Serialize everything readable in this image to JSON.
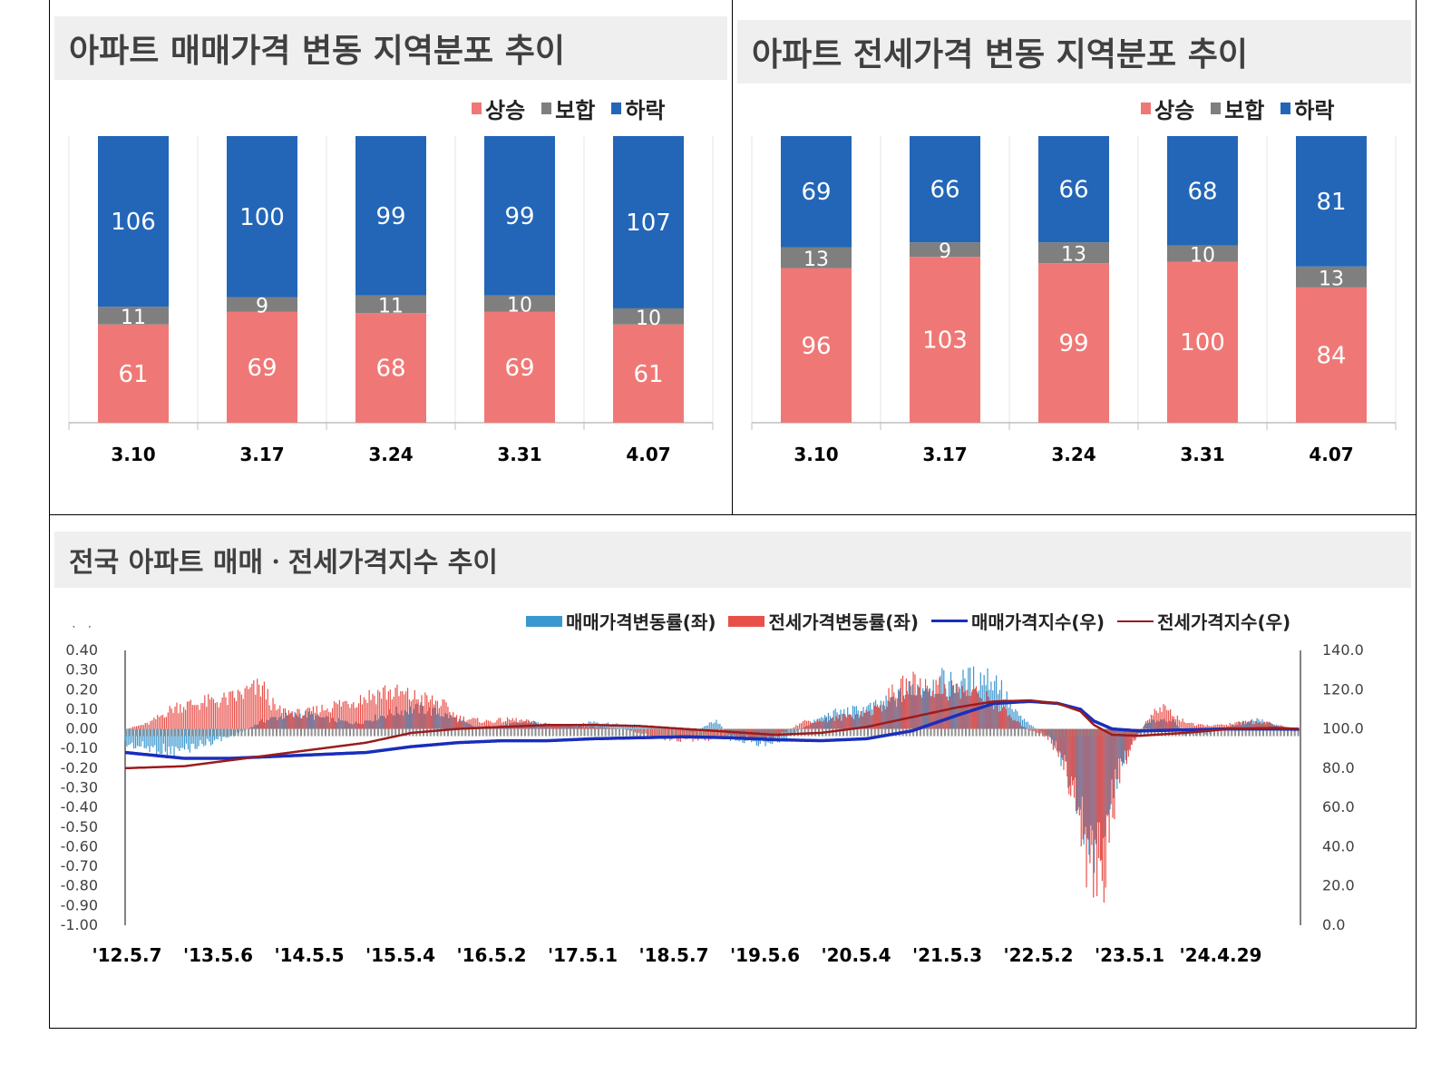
{
  "colors": {
    "rise": "#ef7876",
    "flat": "#7f7f7f",
    "fall": "#2366b8",
    "sale_rate": "#3b97cf",
    "jeonse_rate": "#e8504a",
    "sale_index": "#1a2ebb",
    "jeonse_index": "#9b1c1c"
  },
  "left_panel": {
    "title": "아파트 매매가격 변동 지역분포 추이"
  },
  "right_panel": {
    "title": "아파트 전세가격 변동 지역분포 추이"
  },
  "bottom_panel": {
    "title": "전국 아파트 매매ㆍ전세가격지수 추이"
  },
  "stack_legend": {
    "rise": "상승",
    "flat": "보합",
    "fall": "하락"
  },
  "line_legend": {
    "sale_rate": "매매가격변동률(좌)",
    "jeonse_rate": "전세가격변동률(좌)",
    "sale_index": "매매가격지수(우)",
    "jeonse_index": "전세가격지수(우)"
  },
  "chart_data": [
    {
      "type": "bar",
      "stacked": true,
      "title": "아파트 매매가격 변동 지역분포 추이",
      "categories": [
        "3.10",
        "3.17",
        "3.24",
        "3.31",
        "4.07"
      ],
      "series": [
        {
          "name": "상승",
          "values": [
            61,
            69,
            68,
            69,
            61
          ]
        },
        {
          "name": "보합",
          "values": [
            11,
            9,
            11,
            10,
            10
          ]
        },
        {
          "name": "하락",
          "values": [
            106,
            100,
            99,
            99,
            107
          ]
        }
      ],
      "legend": "top-right"
    },
    {
      "type": "bar",
      "stacked": true,
      "title": "아파트 전세가격 변동 지역분포 추이",
      "categories": [
        "3.10",
        "3.17",
        "3.24",
        "3.31",
        "4.07"
      ],
      "series": [
        {
          "name": "상승",
          "values": [
            96,
            103,
            99,
            100,
            84
          ]
        },
        {
          "name": "보합",
          "values": [
            13,
            9,
            13,
            10,
            13
          ]
        },
        {
          "name": "하락",
          "values": [
            69,
            66,
            66,
            68,
            81
          ]
        }
      ],
      "legend": "top-right"
    },
    {
      "type": "bar+line",
      "title": "전국 아파트 매매ㆍ전세가격지수 추이",
      "y_left_unit": "(%)",
      "ylim_left": [
        -1.0,
        0.4
      ],
      "y_left_ticks": [
        "0.40",
        "0.30",
        "0.20",
        "0.10",
        "0.00",
        "-0.10",
        "-0.20",
        "-0.30",
        "-0.40",
        "-0.50",
        "-0.60",
        "-0.70",
        "-0.80",
        "-0.90",
        "-1.00"
      ],
      "ylim_right": [
        0,
        140
      ],
      "y_right_ticks": [
        "140.0",
        "120.0",
        "100.0",
        "80.0",
        "60.0",
        "40.0",
        "20.0",
        "0.0"
      ],
      "x_tick_labels": [
        "'12.5.7",
        "'13.5.6",
        "'14.5.5",
        "'15.5.4",
        "'16.5.2",
        "'17.5.1",
        "'18.5.7",
        "'19.5.6",
        "'20.5.4",
        "'21.5.3",
        "'22.5.2",
        "'23.5.1",
        "'24.4.29"
      ],
      "x_range": [
        2012.35,
        2025.27
      ],
      "weekly_rate_series": [
        {
          "name": "매매가격변동률(좌)",
          "points": [
            [
              2012.35,
              -0.08
            ],
            [
              2012.6,
              -0.1
            ],
            [
              2012.9,
              -0.12
            ],
            [
              2013.2,
              -0.08
            ],
            [
              2013.5,
              -0.04
            ],
            [
              2013.7,
              0.0
            ],
            [
              2013.85,
              0.04
            ],
            [
              2014.0,
              0.06
            ],
            [
              2014.3,
              0.08
            ],
            [
              2014.6,
              0.05
            ],
            [
              2014.9,
              0.03
            ],
            [
              2015.3,
              0.09
            ],
            [
              2015.6,
              0.11
            ],
            [
              2015.9,
              0.07
            ],
            [
              2016.2,
              0.01
            ],
            [
              2016.5,
              0.02
            ],
            [
              2016.8,
              0.04
            ],
            [
              2017.0,
              0.02
            ],
            [
              2017.3,
              0.02
            ],
            [
              2017.5,
              0.04
            ],
            [
              2017.8,
              0.02
            ],
            [
              2018.0,
              0.02
            ],
            [
              2018.3,
              0.01
            ],
            [
              2018.6,
              -0.02
            ],
            [
              2018.85,
              0.05
            ],
            [
              2019.0,
              -0.05
            ],
            [
              2019.3,
              -0.08
            ],
            [
              2019.6,
              -0.05
            ],
            [
              2019.85,
              0.02
            ],
            [
              2020.1,
              0.08
            ],
            [
              2020.4,
              0.1
            ],
            [
              2020.6,
              0.12
            ],
            [
              2020.8,
              0.15
            ],
            [
              2021.0,
              0.22
            ],
            [
              2021.3,
              0.25
            ],
            [
              2021.5,
              0.24
            ],
            [
              2021.8,
              0.28
            ],
            [
              2021.95,
              0.25
            ],
            [
              2022.1,
              0.1
            ],
            [
              2022.3,
              0.02
            ],
            [
              2022.45,
              -0.02
            ],
            [
              2022.6,
              -0.1
            ],
            [
              2022.75,
              -0.3
            ],
            [
              2022.9,
              -0.5
            ],
            [
              2023.0,
              -0.7
            ],
            [
              2023.1,
              -0.5
            ],
            [
              2023.25,
              -0.25
            ],
            [
              2023.4,
              -0.08
            ],
            [
              2023.55,
              0.02
            ],
            [
              2023.7,
              0.05
            ],
            [
              2023.85,
              0.05
            ],
            [
              2024.0,
              -0.03
            ],
            [
              2024.2,
              -0.03
            ],
            [
              2024.4,
              0.0
            ],
            [
              2024.6,
              0.03
            ],
            [
              2024.8,
              0.05
            ],
            [
              2025.0,
              0.02
            ],
            [
              2025.27,
              -0.01
            ]
          ]
        },
        {
          "name": "전세가격변동률(좌)",
          "points": [
            [
              2012.35,
              0.0
            ],
            [
              2012.6,
              0.03
            ],
            [
              2012.9,
              0.12
            ],
            [
              2013.2,
              0.14
            ],
            [
              2013.5,
              0.16
            ],
            [
              2013.7,
              0.2
            ],
            [
              2013.85,
              0.22
            ],
            [
              2014.0,
              0.1
            ],
            [
              2014.3,
              0.08
            ],
            [
              2014.6,
              0.12
            ],
            [
              2014.9,
              0.16
            ],
            [
              2015.2,
              0.2
            ],
            [
              2015.5,
              0.17
            ],
            [
              2015.8,
              0.14
            ],
            [
              2016.0,
              0.06
            ],
            [
              2016.3,
              0.04
            ],
            [
              2016.6,
              0.05
            ],
            [
              2016.9,
              0.03
            ],
            [
              2017.2,
              0.02
            ],
            [
              2017.5,
              0.01
            ],
            [
              2017.8,
              0.0
            ],
            [
              2018.0,
              -0.02
            ],
            [
              2018.3,
              -0.05
            ],
            [
              2018.6,
              -0.06
            ],
            [
              2018.9,
              -0.04
            ],
            [
              2019.2,
              -0.05
            ],
            [
              2019.5,
              -0.04
            ],
            [
              2019.8,
              0.04
            ],
            [
              2020.1,
              0.05
            ],
            [
              2020.4,
              0.08
            ],
            [
              2020.6,
              0.1
            ],
            [
              2020.8,
              0.2
            ],
            [
              2021.0,
              0.24
            ],
            [
              2021.3,
              0.22
            ],
            [
              2021.6,
              0.2
            ],
            [
              2021.9,
              0.14
            ],
            [
              2022.1,
              0.05
            ],
            [
              2022.3,
              -0.01
            ],
            [
              2022.5,
              -0.05
            ],
            [
              2022.65,
              -0.2
            ],
            [
              2022.8,
              -0.4
            ],
            [
              2022.95,
              -0.8
            ],
            [
              2023.05,
              -0.85
            ],
            [
              2023.15,
              -0.6
            ],
            [
              2023.3,
              -0.2
            ],
            [
              2023.45,
              -0.05
            ],
            [
              2023.6,
              0.06
            ],
            [
              2023.75,
              0.12
            ],
            [
              2023.9,
              0.06
            ],
            [
              2024.1,
              0.02
            ],
            [
              2024.4,
              0.02
            ],
            [
              2024.7,
              0.04
            ],
            [
              2024.9,
              0.03
            ],
            [
              2025.1,
              0.01
            ],
            [
              2025.27,
              0.0
            ]
          ]
        }
      ],
      "index_series": [
        {
          "name": "매매가격지수(우)",
          "points": [
            [
              2012.35,
              88
            ],
            [
              2013.0,
              85
            ],
            [
              2013.5,
              85
            ],
            [
              2014.0,
              86
            ],
            [
              2014.5,
              87
            ],
            [
              2015.0,
              88
            ],
            [
              2015.5,
              91
            ],
            [
              2016.0,
              93
            ],
            [
              2016.5,
              94
            ],
            [
              2017.0,
              94
            ],
            [
              2017.5,
              95
            ],
            [
              2018.0,
              95.5
            ],
            [
              2018.5,
              96
            ],
            [
              2019.0,
              95.5
            ],
            [
              2019.5,
              94.5
            ],
            [
              2020.0,
              94
            ],
            [
              2020.5,
              95
            ],
            [
              2021.0,
              99
            ],
            [
              2021.5,
              107
            ],
            [
              2021.9,
              113
            ],
            [
              2022.3,
              114
            ],
            [
              2022.6,
              113
            ],
            [
              2022.85,
              110
            ],
            [
              2023.0,
              104
            ],
            [
              2023.2,
              100
            ],
            [
              2023.5,
              99
            ],
            [
              2024.0,
              99.5
            ],
            [
              2024.5,
              100
            ],
            [
              2025.0,
              100
            ],
            [
              2025.27,
              99.8
            ]
          ]
        },
        {
          "name": "전세가격지수(우)",
          "points": [
            [
              2012.35,
              80
            ],
            [
              2013.0,
              81
            ],
            [
              2013.5,
              84
            ],
            [
              2014.0,
              87
            ],
            [
              2014.5,
              90
            ],
            [
              2015.0,
              93
            ],
            [
              2015.5,
              98
            ],
            [
              2016.0,
              100
            ],
            [
              2016.5,
              101
            ],
            [
              2017.0,
              102
            ],
            [
              2017.5,
              102
            ],
            [
              2018.0,
              101.5
            ],
            [
              2018.5,
              100
            ],
            [
              2019.0,
              98.5
            ],
            [
              2019.5,
              97
            ],
            [
              2020.0,
              98
            ],
            [
              2020.5,
              101
            ],
            [
              2021.0,
              106
            ],
            [
              2021.5,
              111
            ],
            [
              2021.9,
              114
            ],
            [
              2022.3,
              114.5
            ],
            [
              2022.6,
              113
            ],
            [
              2022.85,
              109
            ],
            [
              2023.0,
              102
            ],
            [
              2023.2,
              97
            ],
            [
              2023.5,
              96.5
            ],
            [
              2024.0,
              98
            ],
            [
              2024.5,
              100
            ],
            [
              2025.0,
              100.5
            ],
            [
              2025.27,
              100
            ]
          ]
        }
      ],
      "legend": "top-right"
    }
  ]
}
